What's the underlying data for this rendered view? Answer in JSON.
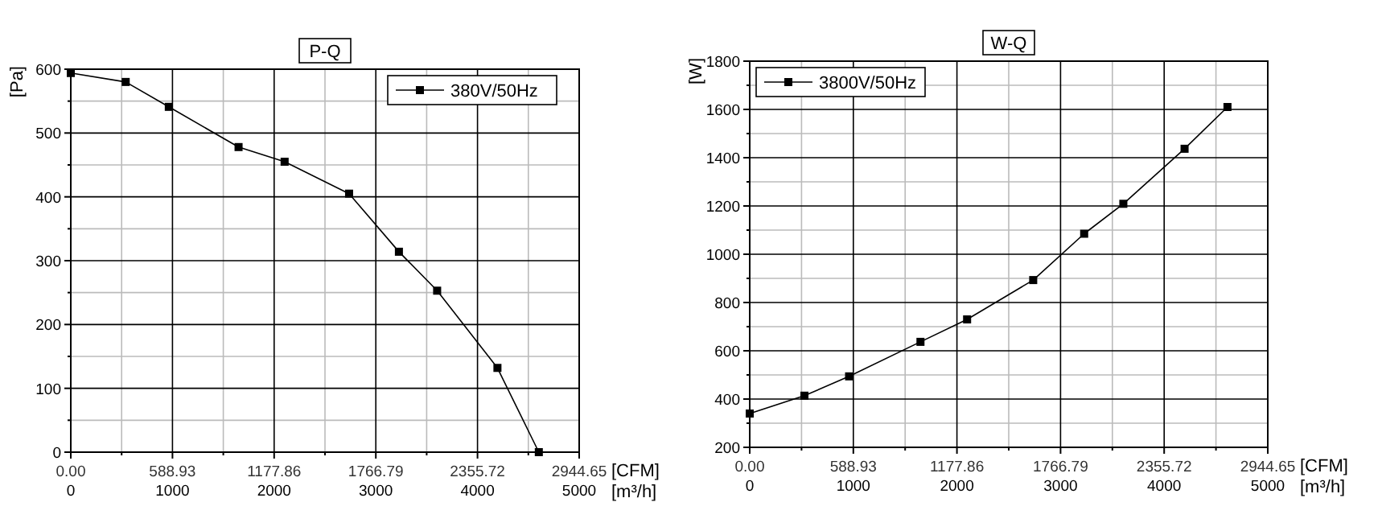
{
  "chart_data": [
    {
      "type": "line",
      "title": "P-Q",
      "ylabel": "[Pa]",
      "xlabel": "[m³/h]",
      "x2label": "[CFM]",
      "xlim": [
        0,
        5000
      ],
      "xticks": [
        0,
        1000,
        2000,
        3000,
        4000,
        5000
      ],
      "x2lim": [
        0,
        2944.65
      ],
      "x2ticks": [
        {
          "value": 0,
          "label": "0.00"
        },
        {
          "value": 588.93,
          "label": "588.93"
        },
        {
          "value": 1177.86,
          "label": "1177.86"
        },
        {
          "value": 1766.79,
          "label": "1766.79"
        },
        {
          "value": 2355.72,
          "label": "2355.72"
        },
        {
          "value": 2944.65,
          "label": "2944.65"
        }
      ],
      "ylim": [
        0,
        600
      ],
      "yticks": [
        0,
        100,
        200,
        300,
        400,
        500,
        600
      ],
      "grid": true,
      "legend": "top right",
      "marker": "square",
      "line_style": "solid",
      "series": [
        {
          "name": "380V/50Hz",
          "color": "#000000",
          "x": [
            0,
            540,
            964,
            1650,
            2103,
            2737,
            3227,
            3603,
            4196,
            4603
          ],
          "values": [
            594,
            580,
            541,
            478,
            455,
            405,
            314,
            253,
            132,
            0
          ]
        }
      ]
    },
    {
      "type": "line",
      "title": "W-Q",
      "ylabel": "[W]",
      "xlabel": "[m³/h]",
      "x2label": "[CFM]",
      "xlim": [
        0,
        5000
      ],
      "xticks": [
        0,
        1000,
        2000,
        3000,
        4000,
        5000
      ],
      "x2lim": [
        0,
        2944.65
      ],
      "x2ticks": [
        {
          "value": 0,
          "label": "0.00"
        },
        {
          "value": 588.93,
          "label": "588.93"
        },
        {
          "value": 1177.86,
          "label": "1177.86"
        },
        {
          "value": 1766.79,
          "label": "1766.79"
        },
        {
          "value": 2355.72,
          "label": "2355.72"
        },
        {
          "value": 2944.65,
          "label": "2944.65"
        }
      ],
      "ylim": [
        200,
        1800
      ],
      "yticks": [
        200,
        400,
        600,
        800,
        1000,
        1200,
        1400,
        1600,
        1800
      ],
      "grid": true,
      "legend": "top left",
      "marker": "square",
      "line_style": "solid",
      "series": [
        {
          "name": "3800V/50Hz",
          "color": "#000000",
          "x": [
            0,
            528,
            959,
            1648,
            2098,
            2736,
            3228,
            3606,
            4197,
            4611
          ],
          "values": [
            340,
            414,
            494,
            637,
            730,
            893,
            1085,
            1209,
            1437,
            1610
          ]
        }
      ]
    }
  ]
}
